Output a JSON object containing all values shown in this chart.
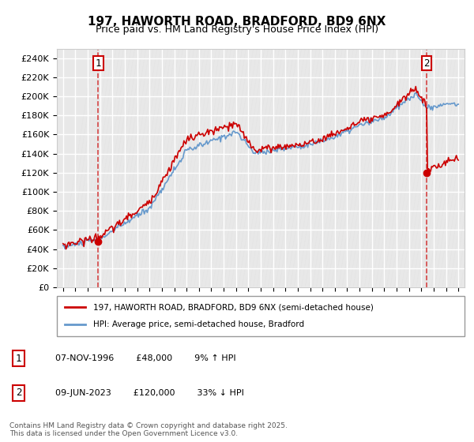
{
  "title": "197, HAWORTH ROAD, BRADFORD, BD9 6NX",
  "subtitle": "Price paid vs. HM Land Registry's House Price Index (HPI)",
  "xlim": [
    1993.5,
    2026.5
  ],
  "ylim": [
    0,
    250000
  ],
  "yticks": [
    0,
    20000,
    40000,
    60000,
    80000,
    100000,
    120000,
    140000,
    160000,
    180000,
    200000,
    220000,
    240000
  ],
  "ytick_labels": [
    "£0",
    "£20K",
    "£40K",
    "£60K",
    "£80K",
    "£100K",
    "£120K",
    "£140K",
    "£160K",
    "£180K",
    "£200K",
    "£220K",
    "£240K"
  ],
  "sale1_x": 1996.85,
  "sale1_y": 48000,
  "sale2_x": 2023.44,
  "sale2_y": 120000,
  "sale1_label": "1",
  "sale2_label": "2",
  "legend_line1": "197, HAWORTH ROAD, BRADFORD, BD9 6NX (semi-detached house)",
  "legend_line2": "HPI: Average price, semi-detached house, Bradford",
  "annotation1": "07-NOV-1996        £48,000        9% ↑ HPI",
  "annotation2": "09-JUN-2023        £120,000        33% ↓ HPI",
  "footnote": "Contains HM Land Registry data © Crown copyright and database right 2025.\nThis data is licensed under the Open Government Licence v3.0.",
  "red_line_color": "#cc0000",
  "blue_line_color": "#6699cc",
  "background_color": "#ffffff",
  "plot_bg_color": "#f5f5f5",
  "grid_color": "#ffffff",
  "hatch_color": "#dddddd"
}
